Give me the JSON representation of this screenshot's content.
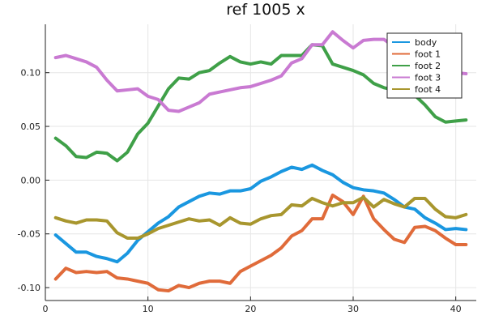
{
  "chart_data": {
    "type": "line",
    "title": "ref 1005 x",
    "xlabel": "",
    "ylabel": "",
    "xlim": [
      0,
      42
    ],
    "ylim": [
      -0.112,
      0.145
    ],
    "xticks": [
      0,
      10,
      20,
      30,
      40
    ],
    "yticks": [
      -0.1,
      -0.05,
      0.0,
      0.05,
      0.1
    ],
    "xtick_labels": [
      "0",
      "10",
      "20",
      "30",
      "40"
    ],
    "ytick_labels": [
      "-0.10",
      "-0.05",
      "0.00",
      "0.05",
      "0.10"
    ],
    "grid": true,
    "legend_position": "top-right",
    "x": [
      1,
      2,
      3,
      4,
      5,
      6,
      7,
      8,
      9,
      10,
      11,
      12,
      13,
      14,
      15,
      16,
      17,
      18,
      19,
      20,
      21,
      22,
      23,
      24,
      25,
      26,
      27,
      28,
      29,
      30,
      31,
      32,
      33,
      34,
      35,
      36,
      37,
      38,
      39,
      40,
      41
    ],
    "series": [
      {
        "name": "body",
        "color": "#1a97e0",
        "values": [
          -0.051,
          -0.059,
          -0.067,
          -0.067,
          -0.071,
          -0.073,
          -0.076,
          -0.068,
          -0.056,
          -0.048,
          -0.04,
          -0.034,
          -0.025,
          -0.02,
          -0.015,
          -0.012,
          -0.013,
          -0.01,
          -0.01,
          -0.008,
          -0.001,
          0.003,
          0.008,
          0.012,
          0.01,
          0.014,
          0.009,
          0.005,
          -0.002,
          -0.007,
          -0.009,
          -0.01,
          -0.012,
          -0.018,
          -0.025,
          -0.027,
          -0.035,
          -0.04,
          -0.046,
          -0.045,
          -0.046
        ]
      },
      {
        "name": "foot 1",
        "color": "#e06b3a",
        "values": [
          -0.092,
          -0.082,
          -0.086,
          -0.085,
          -0.086,
          -0.085,
          -0.091,
          -0.092,
          -0.094,
          -0.096,
          -0.102,
          -0.103,
          -0.098,
          -0.1,
          -0.096,
          -0.094,
          -0.094,
          -0.096,
          -0.085,
          -0.08,
          -0.075,
          -0.07,
          -0.063,
          -0.052,
          -0.047,
          -0.036,
          -0.036,
          -0.014,
          -0.02,
          -0.032,
          -0.015,
          -0.036,
          -0.046,
          -0.055,
          -0.058,
          -0.044,
          -0.043,
          -0.047,
          -0.054,
          -0.06,
          -0.06
        ]
      },
      {
        "name": "foot 2",
        "color": "#3fa048",
        "values": [
          0.039,
          0.032,
          0.022,
          0.021,
          0.026,
          0.025,
          0.018,
          0.026,
          0.043,
          0.053,
          0.069,
          0.085,
          0.095,
          0.094,
          0.1,
          0.102,
          0.109,
          0.115,
          0.11,
          0.108,
          0.11,
          0.108,
          0.116,
          0.116,
          0.116,
          0.126,
          0.125,
          0.108,
          0.105,
          0.102,
          0.098,
          0.09,
          0.086,
          0.084,
          0.08,
          0.079,
          0.07,
          0.059,
          0.054,
          0.055,
          0.056
        ]
      },
      {
        "name": "foot 3",
        "color": "#c97ad2",
        "values": [
          0.114,
          0.116,
          0.113,
          0.11,
          0.105,
          0.093,
          0.083,
          0.084,
          0.085,
          0.078,
          0.075,
          0.065,
          0.064,
          0.068,
          0.072,
          0.08,
          0.082,
          0.084,
          0.086,
          0.087,
          0.09,
          0.093,
          0.097,
          0.109,
          0.113,
          0.126,
          0.126,
          0.138,
          0.13,
          0.123,
          0.13,
          0.131,
          0.131,
          0.124,
          0.119,
          0.113,
          0.112,
          0.108,
          0.105,
          0.1,
          0.099
        ]
      },
      {
        "name": "foot 4",
        "color": "#a8962e",
        "values": [
          -0.035,
          -0.038,
          -0.04,
          -0.037,
          -0.037,
          -0.038,
          -0.049,
          -0.054,
          -0.054,
          -0.05,
          -0.045,
          -0.042,
          -0.039,
          -0.036,
          -0.038,
          -0.037,
          -0.042,
          -0.035,
          -0.04,
          -0.041,
          -0.036,
          -0.033,
          -0.032,
          -0.023,
          -0.024,
          -0.017,
          -0.021,
          -0.024,
          -0.021,
          -0.021,
          -0.016,
          -0.025,
          -0.018,
          -0.022,
          -0.025,
          -0.017,
          -0.017,
          -0.027,
          -0.034,
          -0.035,
          -0.032
        ]
      }
    ]
  }
}
